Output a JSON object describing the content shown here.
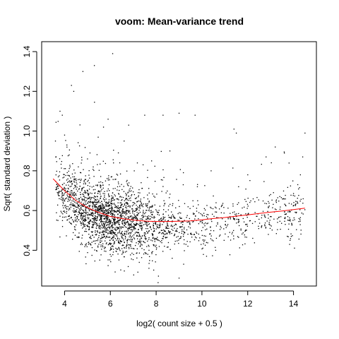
{
  "chart_data": {
    "type": "scatter",
    "title": "voom: Mean-variance trend",
    "xlabel": "log2( count size + 0.5 )",
    "ylabel": "Sqrt( standard deviation )",
    "xlim": [
      3.0,
      15.0
    ],
    "ylim": [
      0.22,
      1.45
    ],
    "xticks": [
      4,
      6,
      8,
      10,
      12,
      14
    ],
    "yticks": [
      0.4,
      0.6,
      0.8,
      1.0,
      1.2,
      1.4
    ],
    "xtick_labels": [
      "4",
      "6",
      "8",
      "10",
      "12",
      "14"
    ],
    "ytick_labels": [
      "0.4",
      "0.6",
      "0.8",
      "1.0",
      "1.2",
      "1.4"
    ],
    "grid": false,
    "point_color": "#000000",
    "trend": {
      "color": "#ff0000",
      "x": [
        3.5,
        4.0,
        4.5,
        5.0,
        5.5,
        6.0,
        6.5,
        7.0,
        7.5,
        8.0,
        8.5,
        9.0,
        9.5,
        10.0,
        10.5,
        11.0,
        11.5,
        12.0,
        12.5,
        13.0,
        13.5,
        14.0,
        14.5
      ],
      "y": [
        0.76,
        0.7,
        0.65,
        0.615,
        0.59,
        0.57,
        0.56,
        0.552,
        0.547,
        0.545,
        0.545,
        0.546,
        0.548,
        0.553,
        0.56,
        0.565,
        0.572,
        0.578,
        0.585,
        0.592,
        0.598,
        0.605,
        0.612
      ]
    },
    "points": [
      [
        3.6,
        0.95
      ],
      [
        3.8,
        1.1
      ],
      [
        3.9,
        1.08
      ],
      [
        4.0,
        0.98
      ],
      [
        4.1,
        0.93
      ],
      [
        4.2,
        0.88
      ],
      [
        4.3,
        1.23
      ],
      [
        4.4,
        1.2
      ],
      [
        4.8,
        1.3
      ],
      [
        5.3,
        1.33
      ],
      [
        6.1,
        1.39
      ],
      [
        6.8,
        1.03
      ],
      [
        7.5,
        1.08
      ],
      [
        8.3,
        1.08
      ],
      [
        9.0,
        1.09
      ],
      [
        9.7,
        1.08
      ],
      [
        11.4,
        1.01
      ],
      [
        11.5,
        0.99
      ],
      [
        12.8,
        0.87
      ],
      [
        13.2,
        0.92
      ],
      [
        14.5,
        0.99
      ],
      [
        14.4,
        0.87
      ],
      [
        14.3,
        0.78
      ],
      [
        10.4,
        0.8
      ],
      [
        9.8,
        0.72
      ],
      [
        8.6,
        0.9
      ],
      [
        7.8,
        0.85
      ],
      [
        6.6,
        0.95
      ],
      [
        5.7,
        1.02
      ],
      [
        5.9,
        1.06
      ],
      [
        6.3,
        0.2
      ],
      [
        8.1,
        0.27
      ],
      [
        9.0,
        0.26
      ],
      [
        7.2,
        0.29
      ],
      [
        5.0,
        0.86
      ],
      [
        4.6,
        0.82
      ],
      [
        12.0,
        0.78
      ],
      [
        11.6,
        0.72
      ],
      [
        13.8,
        0.55
      ],
      [
        13.9,
        0.47
      ],
      [
        12.9,
        0.48
      ],
      [
        11.9,
        0.5
      ],
      [
        10.6,
        0.4
      ],
      [
        10.2,
        0.37
      ],
      [
        9.2,
        0.33
      ],
      [
        8.7,
        0.36
      ]
    ]
  }
}
